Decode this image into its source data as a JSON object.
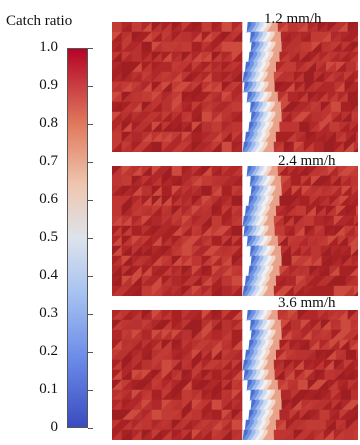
{
  "colorbar": {
    "title": "Catch ratio",
    "ticks": [
      "1.0",
      "0.9",
      "0.8",
      "0.7",
      "0.6",
      "0.5",
      "0.4",
      "0.3",
      "0.2",
      "0.1",
      "0"
    ],
    "colors": [
      "#b40426",
      "#e07a5e",
      "#efc6b0",
      "#dde3ec",
      "#a9c4f0",
      "#6a8be8",
      "#3a4cc0"
    ]
  },
  "panels": [
    {
      "label": "1.2 mm/h"
    },
    {
      "label": "2.4 mm/h"
    },
    {
      "label": "3.6 mm/h"
    }
  ]
}
